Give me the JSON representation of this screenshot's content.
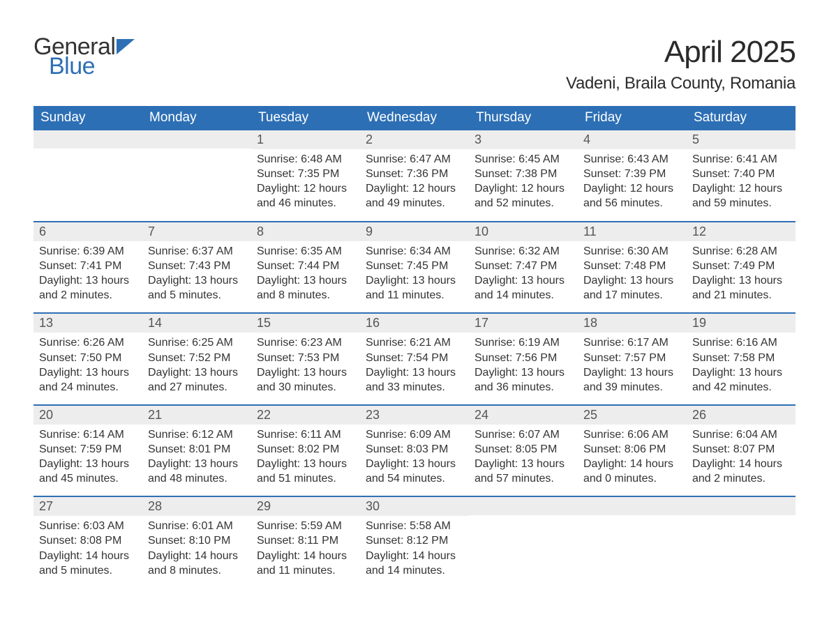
{
  "logo": {
    "word1": "General",
    "word2": "Blue"
  },
  "title": "April 2025",
  "location": "Vadeni, Braila County, Romania",
  "colors": {
    "header_bg": "#2d6fb5",
    "header_text": "#ffffff",
    "daynum_bg": "#ededed",
    "daynum_text": "#555555",
    "body_text": "#333333",
    "rule": "#2d6fb5",
    "page_bg": "#ffffff"
  },
  "weekdays": [
    "Sunday",
    "Monday",
    "Tuesday",
    "Wednesday",
    "Thursday",
    "Friday",
    "Saturday"
  ],
  "weeks": [
    [
      {
        "n": "",
        "sr": "",
        "ss": "",
        "dl": ""
      },
      {
        "n": "",
        "sr": "",
        "ss": "",
        "dl": ""
      },
      {
        "n": "1",
        "sr": "Sunrise: 6:48 AM",
        "ss": "Sunset: 7:35 PM",
        "dl": "Daylight: 12 hours and 46 minutes."
      },
      {
        "n": "2",
        "sr": "Sunrise: 6:47 AM",
        "ss": "Sunset: 7:36 PM",
        "dl": "Daylight: 12 hours and 49 minutes."
      },
      {
        "n": "3",
        "sr": "Sunrise: 6:45 AM",
        "ss": "Sunset: 7:38 PM",
        "dl": "Daylight: 12 hours and 52 minutes."
      },
      {
        "n": "4",
        "sr": "Sunrise: 6:43 AM",
        "ss": "Sunset: 7:39 PM",
        "dl": "Daylight: 12 hours and 56 minutes."
      },
      {
        "n": "5",
        "sr": "Sunrise: 6:41 AM",
        "ss": "Sunset: 7:40 PM",
        "dl": "Daylight: 12 hours and 59 minutes."
      }
    ],
    [
      {
        "n": "6",
        "sr": "Sunrise: 6:39 AM",
        "ss": "Sunset: 7:41 PM",
        "dl": "Daylight: 13 hours and 2 minutes."
      },
      {
        "n": "7",
        "sr": "Sunrise: 6:37 AM",
        "ss": "Sunset: 7:43 PM",
        "dl": "Daylight: 13 hours and 5 minutes."
      },
      {
        "n": "8",
        "sr": "Sunrise: 6:35 AM",
        "ss": "Sunset: 7:44 PM",
        "dl": "Daylight: 13 hours and 8 minutes."
      },
      {
        "n": "9",
        "sr": "Sunrise: 6:34 AM",
        "ss": "Sunset: 7:45 PM",
        "dl": "Daylight: 13 hours and 11 minutes."
      },
      {
        "n": "10",
        "sr": "Sunrise: 6:32 AM",
        "ss": "Sunset: 7:47 PM",
        "dl": "Daylight: 13 hours and 14 minutes."
      },
      {
        "n": "11",
        "sr": "Sunrise: 6:30 AM",
        "ss": "Sunset: 7:48 PM",
        "dl": "Daylight: 13 hours and 17 minutes."
      },
      {
        "n": "12",
        "sr": "Sunrise: 6:28 AM",
        "ss": "Sunset: 7:49 PM",
        "dl": "Daylight: 13 hours and 21 minutes."
      }
    ],
    [
      {
        "n": "13",
        "sr": "Sunrise: 6:26 AM",
        "ss": "Sunset: 7:50 PM",
        "dl": "Daylight: 13 hours and 24 minutes."
      },
      {
        "n": "14",
        "sr": "Sunrise: 6:25 AM",
        "ss": "Sunset: 7:52 PM",
        "dl": "Daylight: 13 hours and 27 minutes."
      },
      {
        "n": "15",
        "sr": "Sunrise: 6:23 AM",
        "ss": "Sunset: 7:53 PM",
        "dl": "Daylight: 13 hours and 30 minutes."
      },
      {
        "n": "16",
        "sr": "Sunrise: 6:21 AM",
        "ss": "Sunset: 7:54 PM",
        "dl": "Daylight: 13 hours and 33 minutes."
      },
      {
        "n": "17",
        "sr": "Sunrise: 6:19 AM",
        "ss": "Sunset: 7:56 PM",
        "dl": "Daylight: 13 hours and 36 minutes."
      },
      {
        "n": "18",
        "sr": "Sunrise: 6:17 AM",
        "ss": "Sunset: 7:57 PM",
        "dl": "Daylight: 13 hours and 39 minutes."
      },
      {
        "n": "19",
        "sr": "Sunrise: 6:16 AM",
        "ss": "Sunset: 7:58 PM",
        "dl": "Daylight: 13 hours and 42 minutes."
      }
    ],
    [
      {
        "n": "20",
        "sr": "Sunrise: 6:14 AM",
        "ss": "Sunset: 7:59 PM",
        "dl": "Daylight: 13 hours and 45 minutes."
      },
      {
        "n": "21",
        "sr": "Sunrise: 6:12 AM",
        "ss": "Sunset: 8:01 PM",
        "dl": "Daylight: 13 hours and 48 minutes."
      },
      {
        "n": "22",
        "sr": "Sunrise: 6:11 AM",
        "ss": "Sunset: 8:02 PM",
        "dl": "Daylight: 13 hours and 51 minutes."
      },
      {
        "n": "23",
        "sr": "Sunrise: 6:09 AM",
        "ss": "Sunset: 8:03 PM",
        "dl": "Daylight: 13 hours and 54 minutes."
      },
      {
        "n": "24",
        "sr": "Sunrise: 6:07 AM",
        "ss": "Sunset: 8:05 PM",
        "dl": "Daylight: 13 hours and 57 minutes."
      },
      {
        "n": "25",
        "sr": "Sunrise: 6:06 AM",
        "ss": "Sunset: 8:06 PM",
        "dl": "Daylight: 14 hours and 0 minutes."
      },
      {
        "n": "26",
        "sr": "Sunrise: 6:04 AM",
        "ss": "Sunset: 8:07 PM",
        "dl": "Daylight: 14 hours and 2 minutes."
      }
    ],
    [
      {
        "n": "27",
        "sr": "Sunrise: 6:03 AM",
        "ss": "Sunset: 8:08 PM",
        "dl": "Daylight: 14 hours and 5 minutes."
      },
      {
        "n": "28",
        "sr": "Sunrise: 6:01 AM",
        "ss": "Sunset: 8:10 PM",
        "dl": "Daylight: 14 hours and 8 minutes."
      },
      {
        "n": "29",
        "sr": "Sunrise: 5:59 AM",
        "ss": "Sunset: 8:11 PM",
        "dl": "Daylight: 14 hours and 11 minutes."
      },
      {
        "n": "30",
        "sr": "Sunrise: 5:58 AM",
        "ss": "Sunset: 8:12 PM",
        "dl": "Daylight: 14 hours and 14 minutes."
      },
      {
        "n": "",
        "sr": "",
        "ss": "",
        "dl": ""
      },
      {
        "n": "",
        "sr": "",
        "ss": "",
        "dl": ""
      },
      {
        "n": "",
        "sr": "",
        "ss": "",
        "dl": ""
      }
    ]
  ]
}
